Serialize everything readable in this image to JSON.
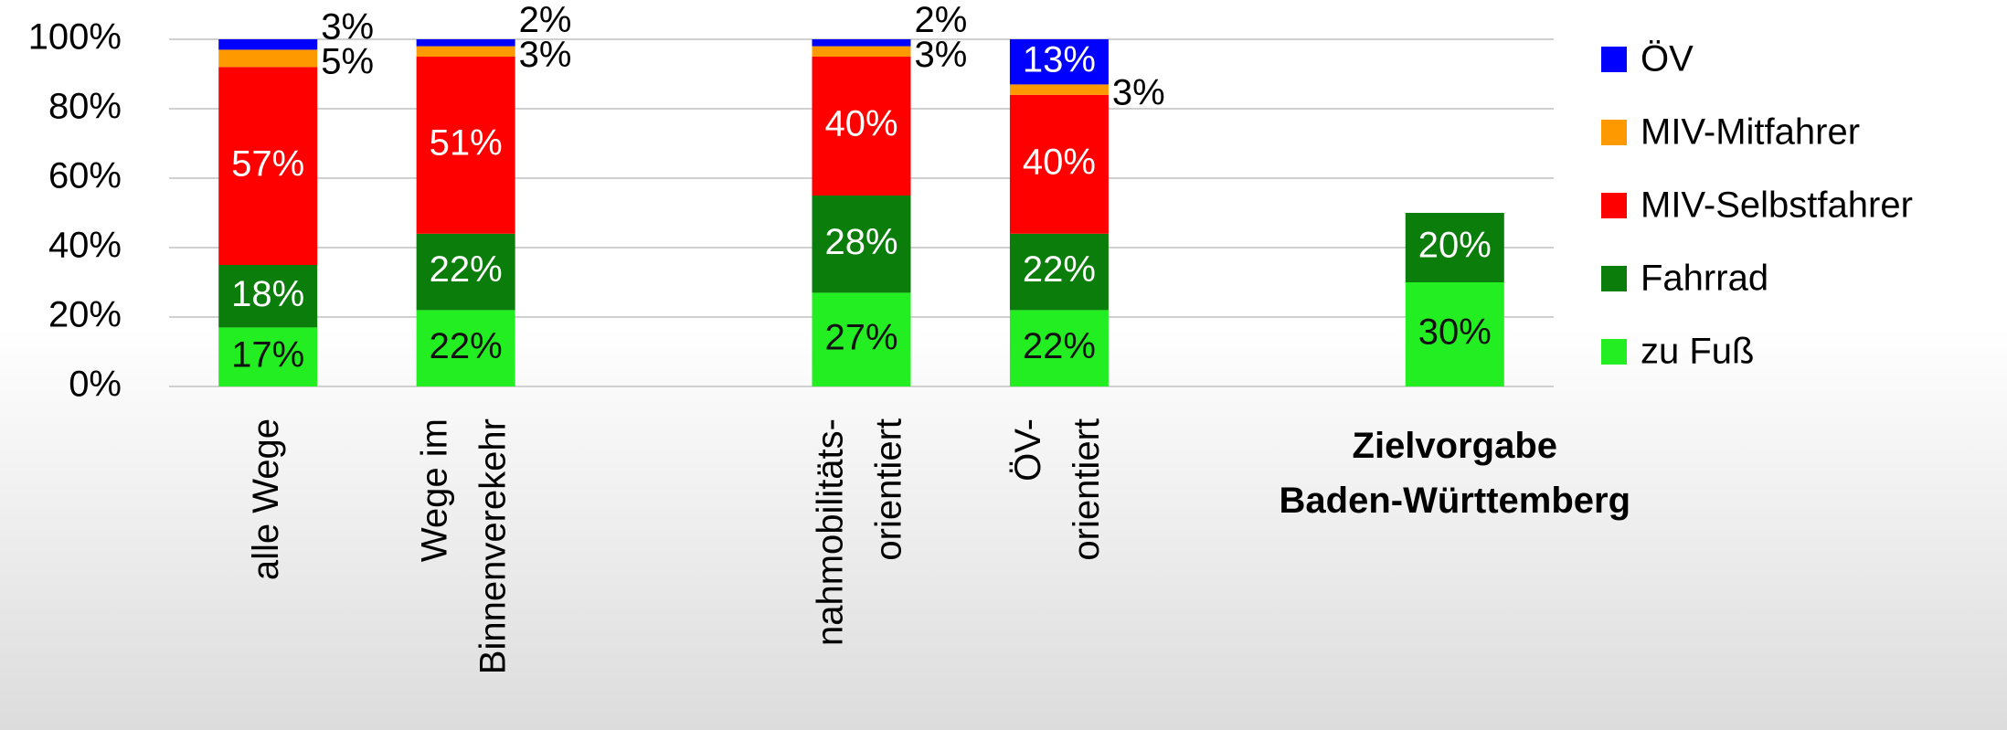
{
  "chart_data": {
    "type": "stacked_bar",
    "categories": [
      "alle Wege",
      "Wege im\nBinnenverekehr",
      null,
      "nahmobilitäts-\norientiert",
      "ÖV-\norientiert",
      null,
      "Zielvorgabe\nBaden-Württemberg"
    ],
    "series": [
      {
        "name": "zu Fuß",
        "color": "#22ee22",
        "values": [
          17,
          22,
          null,
          27,
          22,
          null,
          30
        ],
        "value_labels": [
          "17%",
          "22%",
          null,
          "27%",
          "22%",
          null,
          "30%"
        ]
      },
      {
        "name": "Fahrrad",
        "color": "#0b7d0b",
        "values": [
          18,
          22,
          null,
          28,
          22,
          null,
          20
        ],
        "value_labels": [
          "18%",
          "22%",
          null,
          "28%",
          "22%",
          null,
          "20%"
        ]
      },
      {
        "name": "MIV-Selbstfahrer",
        "color": "#ff0000",
        "values": [
          57,
          51,
          null,
          40,
          40,
          null,
          null
        ],
        "value_labels": [
          "57%",
          "51%",
          null,
          "40%",
          "40%",
          null,
          null
        ]
      },
      {
        "name": "MIV-Mitfahrer",
        "color": "#ff9900",
        "values": [
          5,
          3,
          null,
          3,
          3,
          null,
          null
        ],
        "value_labels": [
          "5%",
          "3%",
          null,
          "3%",
          "3%",
          null,
          null
        ]
      },
      {
        "name": "ÖV",
        "color": "#0000ff",
        "values": [
          3,
          2,
          null,
          2,
          13,
          null,
          null
        ],
        "value_labels": [
          "3%",
          "2%",
          null,
          "2%",
          "13%",
          null,
          null
        ]
      }
    ],
    "ylim": [
      0,
      100
    ],
    "yticks": [
      {
        "value": 0,
        "label": "0%"
      },
      {
        "value": 20,
        "label": "20%"
      },
      {
        "value": 40,
        "label": "40%"
      },
      {
        "value": 60,
        "label": "60%"
      },
      {
        "value": 80,
        "label": "80%"
      },
      {
        "value": 100,
        "label": "100%"
      }
    ],
    "grid": true,
    "legend": "right"
  }
}
